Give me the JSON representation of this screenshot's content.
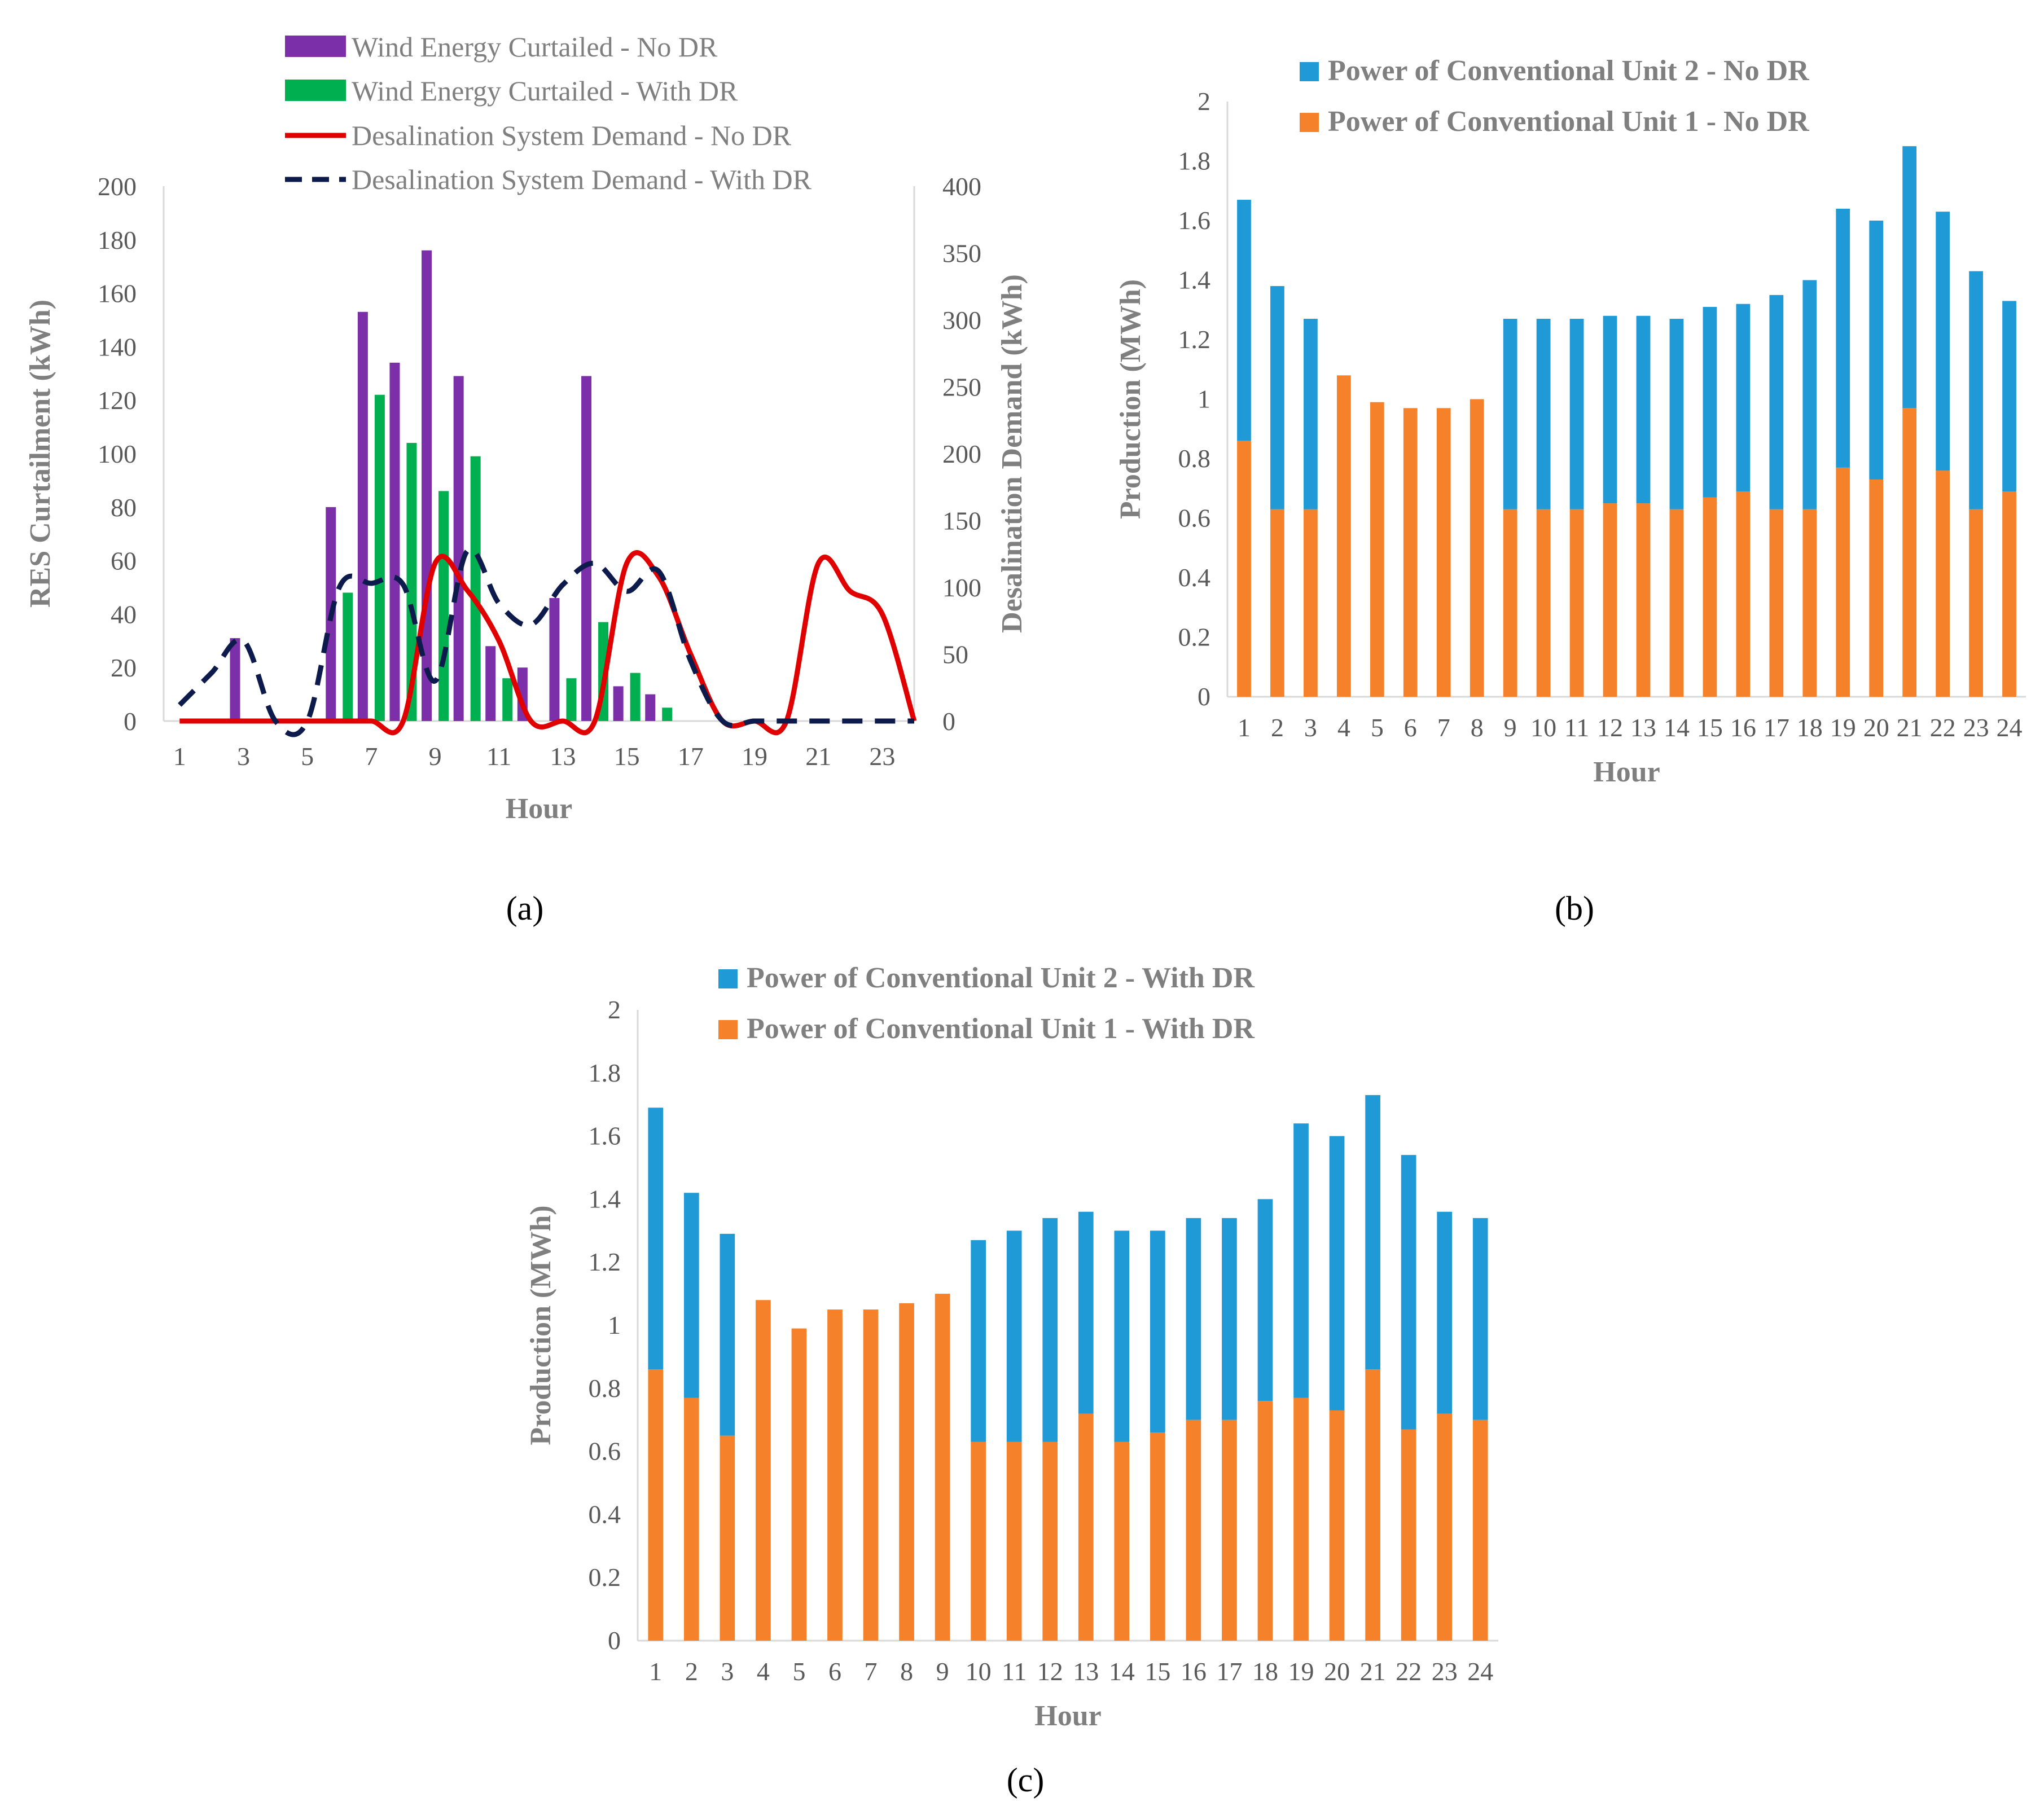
{
  "chart_data": [
    {
      "id": "a",
      "type": "bar+line",
      "panel_label": "(a)",
      "xlabel": "Hour",
      "ylabel": "RES Curtailment (kWh)",
      "y2label": "Desalination Demand (kWh)",
      "ylim": [
        0,
        200
      ],
      "y2lim": [
        0,
        400
      ],
      "yticks": [
        "0",
        "20",
        "40",
        "60",
        "80",
        "100",
        "120",
        "140",
        "160",
        "180",
        "200"
      ],
      "y2ticks": [
        "0",
        "50",
        "100",
        "150",
        "200",
        "250",
        "300",
        "350",
        "400"
      ],
      "xtick_labels": [
        "1",
        "3",
        "5",
        "7",
        "9",
        "11",
        "13",
        "15",
        "17",
        "19",
        "21",
        "23"
      ],
      "categories": [
        1,
        2,
        3,
        4,
        5,
        6,
        7,
        8,
        9,
        10,
        11,
        12,
        13,
        14,
        15,
        16,
        17,
        18,
        19,
        20,
        21,
        22,
        23,
        24
      ],
      "legend": [
        "Wind Energy Curtailed - No DR",
        "Wind Energy Curtailed - With DR",
        "Desalination System Demand - No DR",
        "Desalination System Demand - With DR"
      ],
      "bar_series": [
        {
          "name": "Wind Energy Curtailed - No DR",
          "color": "#7b2fa8",
          "values": [
            0,
            0,
            31,
            0,
            0,
            80,
            153,
            134,
            176,
            129,
            28,
            20,
            46,
            129,
            13,
            10,
            0,
            0,
            0,
            0,
            0,
            0,
            0,
            0
          ]
        },
        {
          "name": "Wind Energy Curtailed - With DR",
          "color": "#00b050",
          "values": [
            0,
            0,
            0,
            0,
            0,
            48,
            122,
            104,
            86,
            99,
            16,
            0,
            16,
            37,
            18,
            5,
            0,
            0,
            0,
            0,
            0,
            0,
            0,
            0
          ]
        }
      ],
      "line_series": [
        {
          "name": "Desalination System Demand - No DR",
          "color": "#e00000",
          "dash": false,
          "values": [
            0,
            0,
            0,
            0,
            0,
            0,
            0,
            0,
            118,
            98,
            60,
            0,
            0,
            0,
            118,
            108,
            50,
            0,
            0,
            0,
            118,
            97,
            80,
            0
          ]
        },
        {
          "name": "Desalination System Demand - With DR",
          "color": "#0d1b4c",
          "dash": true,
          "values": [
            12,
            36,
            60,
            0,
            0,
            100,
            103,
            102,
            30,
            127,
            88,
            72,
            102,
            118,
            97,
            112,
            45,
            0,
            0,
            0,
            0,
            0,
            0,
            0
          ]
        }
      ]
    },
    {
      "id": "b",
      "type": "stacked-bar",
      "panel_label": "(b)",
      "xlabel": "Hour",
      "ylabel": "Production (MWh)",
      "ylim": [
        0,
        2
      ],
      "yticks": [
        "0",
        "0.2",
        "0.4",
        "0.6",
        "0.8",
        "1",
        "1.2",
        "1.4",
        "1.6",
        "1.8",
        "2"
      ],
      "categories": [
        "1",
        "2",
        "3",
        "4",
        "5",
        "6",
        "7",
        "8",
        "9",
        "10",
        "11",
        "12",
        "13",
        "14",
        "15",
        "16",
        "17",
        "18",
        "19",
        "20",
        "21",
        "22",
        "23",
        "24"
      ],
      "legend": [
        "Power of Conventional Unit 2 - No DR",
        "Power of Conventional Unit 1 - No DR"
      ],
      "series": [
        {
          "name": "Power of Conventional Unit 1 - No DR",
          "color": "#f5822a",
          "values": [
            0.86,
            0.63,
            0.63,
            1.08,
            0.99,
            0.97,
            0.97,
            1.0,
            0.63,
            0.63,
            0.63,
            0.65,
            0.65,
            0.63,
            0.67,
            0.69,
            0.63,
            0.63,
            0.77,
            0.73,
            0.97,
            0.76,
            0.63,
            0.69
          ]
        },
        {
          "name": "Power of Conventional Unit 2 - No DR",
          "color": "#1f9ad6",
          "values": [
            0.81,
            0.75,
            0.64,
            0,
            0,
            0,
            0,
            0,
            0.64,
            0.64,
            0.64,
            0.63,
            0.63,
            0.64,
            0.64,
            0.63,
            0.72,
            0.77,
            0.87,
            0.87,
            0.88,
            0.87,
            0.8,
            0.64
          ]
        }
      ]
    },
    {
      "id": "c",
      "type": "stacked-bar",
      "panel_label": "(c)",
      "xlabel": "Hour",
      "ylabel": "Production (MWh)",
      "ylim": [
        0,
        2
      ],
      "yticks": [
        "0",
        "0.2",
        "0.4",
        "0.6",
        "0.8",
        "1",
        "1.2",
        "1.4",
        "1.6",
        "1.8",
        "2"
      ],
      "categories": [
        "1",
        "2",
        "3",
        "4",
        "5",
        "6",
        "7",
        "8",
        "9",
        "10",
        "11",
        "12",
        "13",
        "14",
        "15",
        "16",
        "17",
        "18",
        "19",
        "20",
        "21",
        "22",
        "23",
        "24"
      ],
      "legend": [
        "Power of Conventional Unit 2 - With DR",
        "Power of Conventional Unit 1 - With DR"
      ],
      "series": [
        {
          "name": "Power of Conventional Unit 1 - With DR",
          "color": "#f5822a",
          "values": [
            0.86,
            0.77,
            0.65,
            1.08,
            0.99,
            1.05,
            1.05,
            1.07,
            1.1,
            0.63,
            0.63,
            0.63,
            0.72,
            0.63,
            0.66,
            0.7,
            0.7,
            0.76,
            0.77,
            0.73,
            0.86,
            0.67,
            0.72,
            0.7
          ]
        },
        {
          "name": "Power of Conventional Unit 2 - With DR",
          "color": "#1f9ad6",
          "values": [
            0.83,
            0.65,
            0.64,
            0,
            0,
            0,
            0,
            0,
            0,
            0.64,
            0.67,
            0.71,
            0.64,
            0.67,
            0.64,
            0.64,
            0.64,
            0.64,
            0.87,
            0.87,
            0.87,
            0.87,
            0.64,
            0.64
          ]
        }
      ]
    }
  ]
}
